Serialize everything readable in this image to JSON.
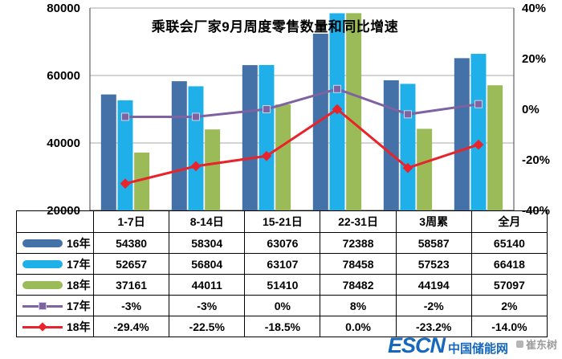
{
  "title": "乘联会厂家9月周度零售数量和同比增速",
  "watermark": {
    "brand": "ESCN",
    "brand_suffix": "中国储能网",
    "credit": "崔东树",
    "brand_color": "#1668bd",
    "credit_color": "#9b9b9b"
  },
  "chart_data": {
    "type": "bar+line",
    "title": "乘联会厂家9月周度零售数量和同比增速",
    "categories": [
      "1-7日",
      "8-14日",
      "15-21日",
      "22-31日",
      "3周累",
      "全月"
    ],
    "bar_series": [
      {
        "name": "16年",
        "color": "#4472a8",
        "values": [
          54380,
          58304,
          63076,
          72388,
          58587,
          65140
        ]
      },
      {
        "name": "17年",
        "color": "#1fb0ea",
        "values": [
          52657,
          56804,
          63107,
          78458,
          57523,
          66418
        ]
      },
      {
        "name": "18年",
        "color": "#9bbb59",
        "values": [
          37161,
          44011,
          51410,
          78482,
          44194,
          57097
        ]
      }
    ],
    "line_series": [
      {
        "name": "17年",
        "color": "#7e62a1",
        "marker": "square",
        "values": [
          -3,
          -3,
          0,
          8,
          -2,
          2
        ],
        "labels": [
          "-3%",
          "-3%",
          "0%",
          "8%",
          "-2%",
          "2%"
        ]
      },
      {
        "name": "18年",
        "color": "#e8232b",
        "marker": "diamond",
        "values": [
          -29.4,
          -22.5,
          -18.5,
          0,
          -23.2,
          -14
        ],
        "labels": [
          "-29.4%",
          "-22.5%",
          "-18.5%",
          "0.0%",
          "-23.2%",
          "-14.0%"
        ]
      }
    ],
    "left_axis": {
      "min": 20000,
      "max": 80000,
      "tick_values": [
        80000,
        60000,
        40000,
        20000
      ],
      "tick_labels": [
        "80000",
        "60000",
        "40000",
        "20000"
      ]
    },
    "right_axis": {
      "min": -40,
      "max": 40,
      "tick_values": [
        40,
        20,
        0,
        -20,
        -40
      ],
      "tick_labels": [
        "40%",
        "20%",
        "0%",
        "-20%",
        "-40%"
      ]
    },
    "grid": true,
    "legend_position": "table-left"
  }
}
